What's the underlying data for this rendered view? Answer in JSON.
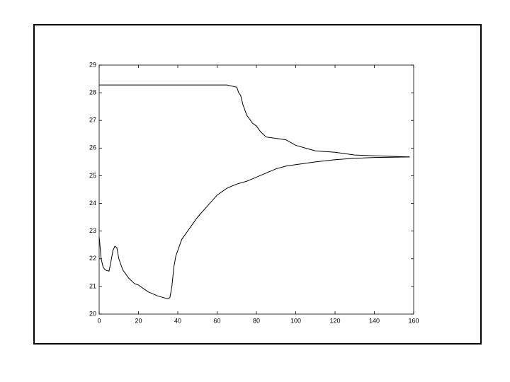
{
  "chart_data": {
    "type": "line",
    "xlim": [
      0,
      160
    ],
    "xticks": [
      0,
      20,
      40,
      60,
      80,
      100,
      120,
      140,
      160
    ],
    "ylim": [
      20,
      29
    ],
    "yticks": [
      20,
      21,
      22,
      23,
      24,
      25,
      26,
      27,
      28,
      29
    ],
    "grid": false,
    "series": [
      {
        "color": "#000000",
        "x": [
          0,
          65,
          70,
          71,
          72,
          73,
          74,
          75,
          76,
          78,
          80,
          82,
          85,
          90,
          95,
          100,
          105,
          110,
          120,
          130,
          140,
          150,
          158
        ],
        "values": [
          28.28,
          28.28,
          28.2,
          28.0,
          27.9,
          27.6,
          27.4,
          27.2,
          27.1,
          26.9,
          26.8,
          26.6,
          26.4,
          26.35,
          26.3,
          26.1,
          26.0,
          25.9,
          25.85,
          25.75,
          25.72,
          25.7,
          25.68
        ]
      },
      {
        "color": "#000000",
        "x": [
          0,
          1,
          2,
          3,
          5,
          6,
          7,
          8,
          9,
          10,
          12,
          15,
          18,
          20,
          25,
          30,
          35,
          36,
          37,
          38,
          39,
          40,
          42,
          45,
          50,
          55,
          60,
          65,
          70,
          75,
          80,
          85,
          90,
          95,
          100,
          110,
          120,
          130,
          140,
          150,
          158
        ],
        "values": [
          22.8,
          22.0,
          21.7,
          21.6,
          21.55,
          21.9,
          22.3,
          22.45,
          22.4,
          22.0,
          21.6,
          21.3,
          21.1,
          21.05,
          20.8,
          20.65,
          20.55,
          20.6,
          21.0,
          21.7,
          22.1,
          22.3,
          22.7,
          23.0,
          23.5,
          23.9,
          24.3,
          24.55,
          24.7,
          24.8,
          24.95,
          25.1,
          25.25,
          25.35,
          25.4,
          25.5,
          25.58,
          25.63,
          25.66,
          25.67,
          25.68
        ]
      }
    ]
  }
}
